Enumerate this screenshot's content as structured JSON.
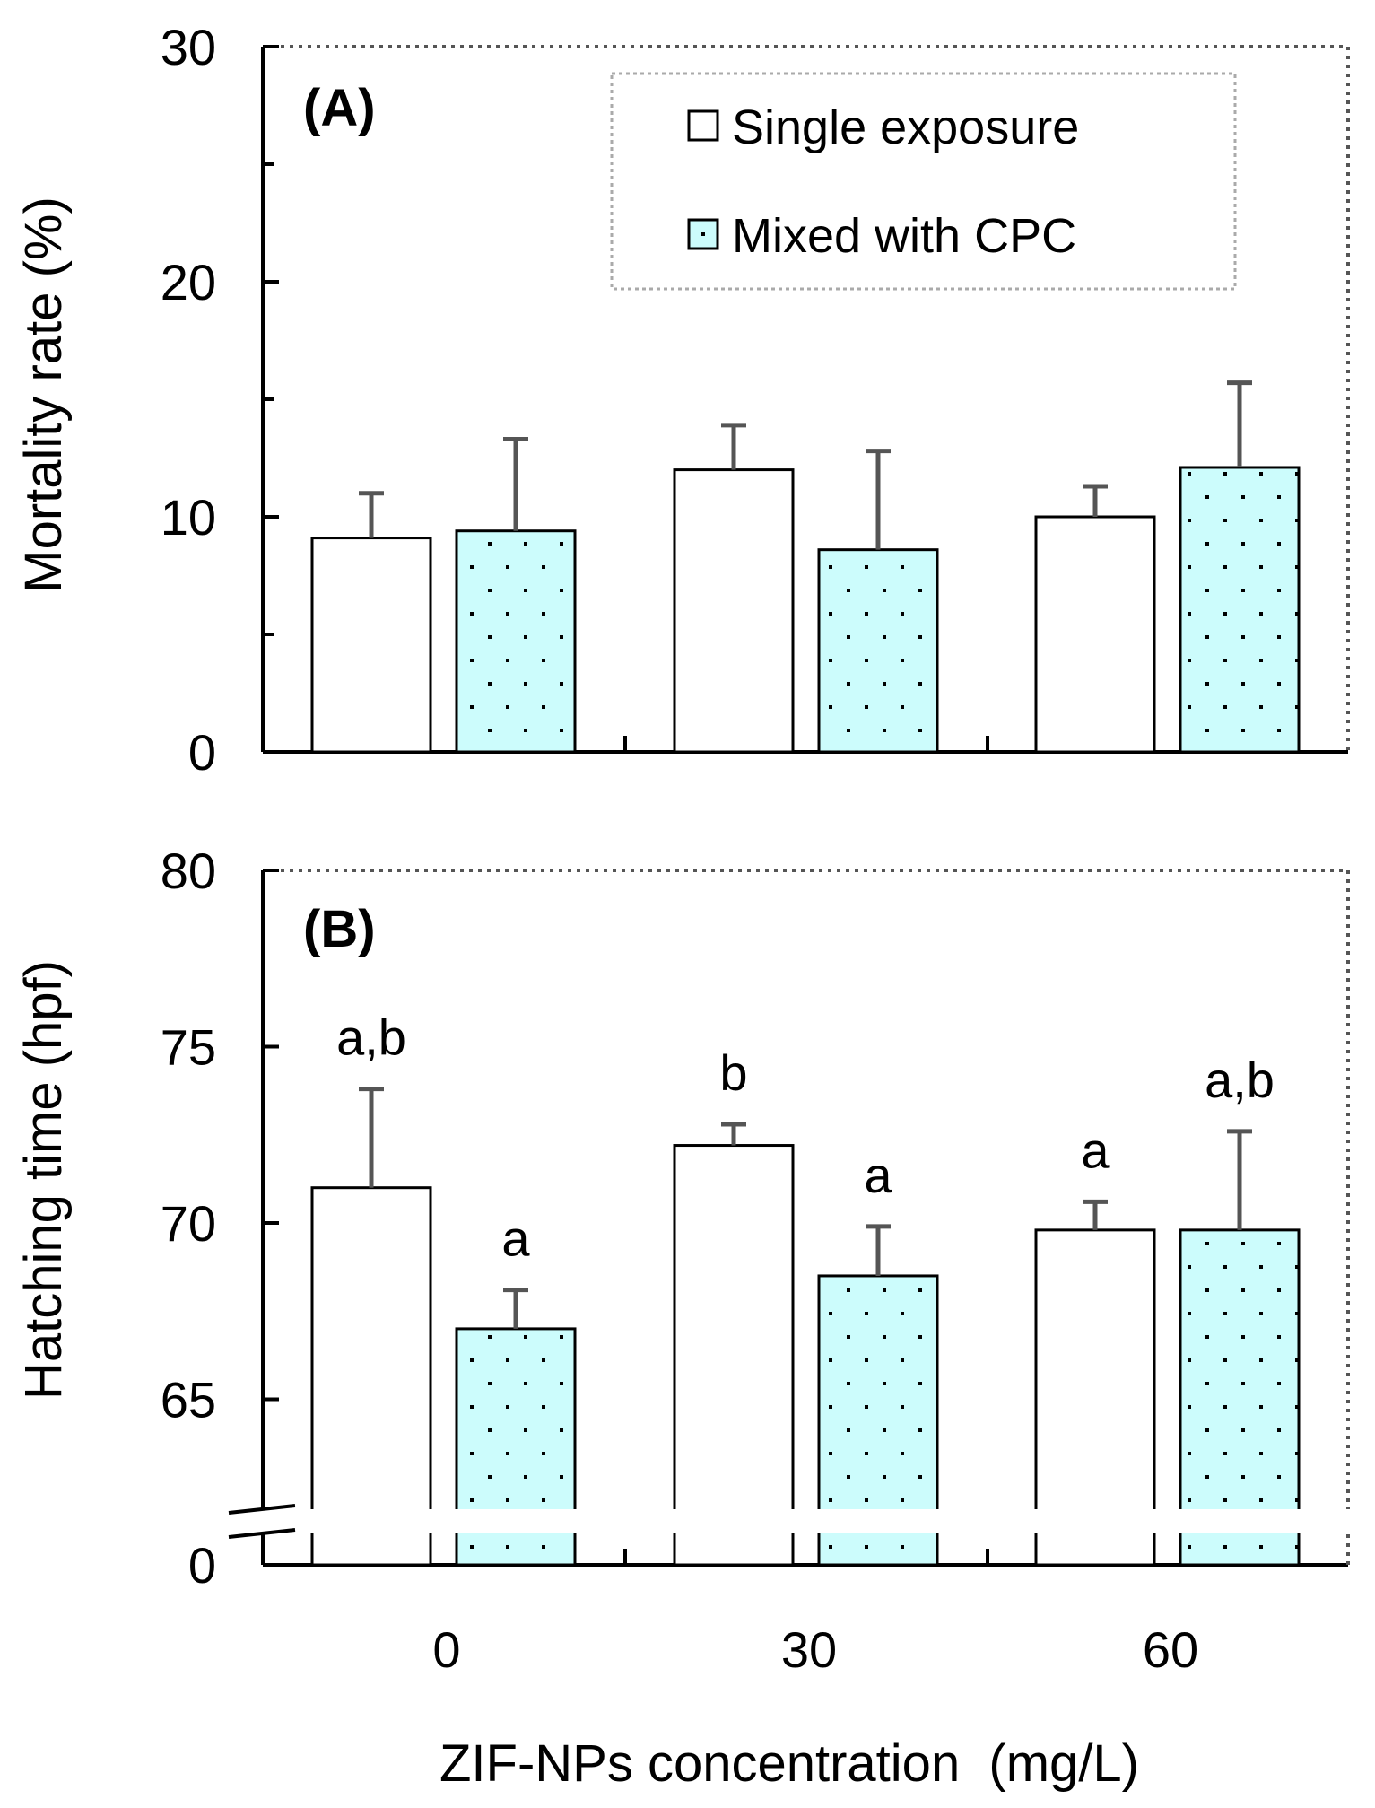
{
  "colors": {
    "single_fill": "#ffffff",
    "mixed_fill": "#ccfcfc",
    "stipple": "#000000",
    "bar_stroke": "#000000",
    "error_bar": "#555555",
    "frame_dots": "#555555",
    "legend_border": "#aaaaaa"
  },
  "chart_data": [
    {
      "type": "bar",
      "panel": "(A)",
      "ylabel": "Mortality rate (%)",
      "ylim": [
        0,
        30
      ],
      "yticks": [
        "0",
        "10",
        "20",
        "30"
      ],
      "ymajor": [
        0,
        10,
        20,
        30
      ],
      "yminor": [
        5,
        15,
        25
      ],
      "categories": [
        "0",
        "30",
        "60"
      ],
      "legend": [
        "Single exposure",
        "Mixed with CPC"
      ],
      "legend_position": "top-right",
      "series": [
        {
          "name": "Single exposure",
          "values": [
            9.1,
            12.0,
            10.0
          ],
          "errors": [
            1.9,
            1.9,
            1.3
          ],
          "labels": [
            "",
            "",
            ""
          ]
        },
        {
          "name": "Mixed with CPC",
          "values": [
            9.4,
            8.6,
            12.1
          ],
          "errors": [
            3.9,
            4.2,
            3.6
          ],
          "labels": [
            "",
            "",
            ""
          ]
        }
      ]
    },
    {
      "type": "bar",
      "panel": "(B)",
      "ylabel": "Hatching time (hpf)",
      "ylim": [
        62,
        80
      ],
      "axis_break": "between 0 and 62",
      "yticks": [
        "0",
        "65",
        "70",
        "75",
        "80"
      ],
      "ymajor": [
        65,
        70,
        75,
        80
      ],
      "categories": [
        "0",
        "30",
        "60"
      ],
      "xlabel": "ZIF-NPs concentration  (mg/L)",
      "series": [
        {
          "name": "Single exposure",
          "values": [
            71.0,
            72.2,
            69.8
          ],
          "errors": [
            2.8,
            0.6,
            0.8
          ],
          "labels": [
            "a,b",
            "b",
            "a"
          ]
        },
        {
          "name": "Mixed with CPC",
          "values": [
            67.0,
            68.5,
            69.8
          ],
          "errors": [
            1.1,
            1.4,
            2.8
          ],
          "labels": [
            "a",
            "a",
            "a,b"
          ]
        }
      ]
    }
  ]
}
